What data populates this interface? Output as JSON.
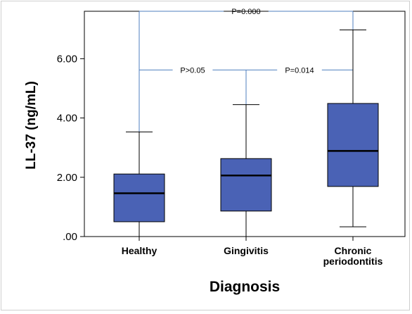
{
  "chart_data": {
    "type": "boxplot",
    "title": "",
    "xlabel": "Diagnosis",
    "ylabel": "LL-37 (ng/mL)",
    "ylim": [
      0,
      7.6
    ],
    "yticks": [
      0,
      2,
      4,
      6
    ],
    "ytick_labels": [
      ".00",
      "2.00",
      "4.00",
      "6.00"
    ],
    "grid": false,
    "box_color": "#4a62b5",
    "line_color": "#4f7fbf",
    "categories": [
      {
        "label_lines": [
          "Healthy"
        ],
        "min": 0.0,
        "q1": 0.5,
        "median": 1.46,
        "q3": 2.11,
        "max": 3.53
      },
      {
        "label_lines": [
          "Gingivitis"
        ],
        "min": 0.0,
        "q1": 0.86,
        "median": 2.06,
        "q3": 2.63,
        "max": 4.45
      },
      {
        "label_lines": [
          "Chronic",
          "periodontitis"
        ],
        "min": 0.33,
        "q1": 1.69,
        "median": 2.89,
        "q3": 4.49,
        "max": 6.97
      }
    ],
    "annotations": [
      {
        "text": "P=0.000",
        "from": 0,
        "to": 2,
        "y": 7.6
      },
      {
        "text": "P>0.05",
        "from": 0,
        "to": 1,
        "y": 5.62
      },
      {
        "text": "P=0.014",
        "from": 1,
        "to": 2,
        "y": 5.62
      }
    ]
  }
}
